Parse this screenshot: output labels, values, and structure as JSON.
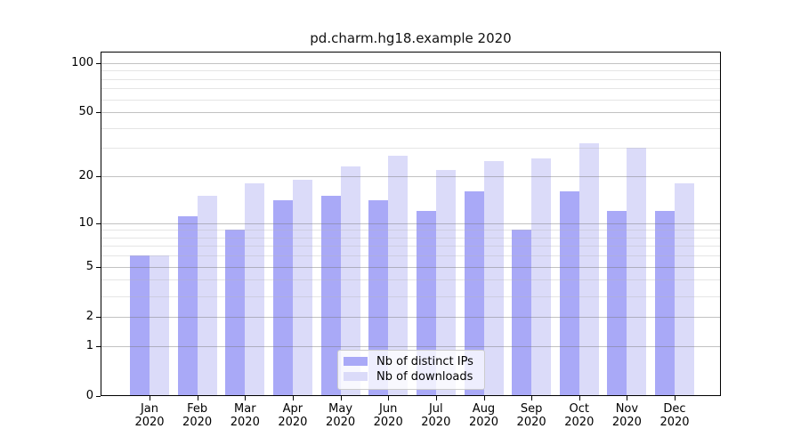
{
  "title": "pd.charm.hg18.example 2020",
  "chart_data": {
    "type": "bar",
    "title": "pd.charm.hg18.example 2020",
    "categories": [
      "Jan",
      "Feb",
      "Mar",
      "Apr",
      "May",
      "Jun",
      "Jul",
      "Aug",
      "Sep",
      "Oct",
      "Nov",
      "Dec"
    ],
    "category_year": "2020",
    "series": [
      {
        "key": "ips",
        "name": "Nb of distinct IPs",
        "color": "#a9a9f7",
        "values": [
          6,
          11,
          9,
          14,
          15,
          14,
          12,
          16,
          9,
          16,
          12,
          12
        ]
      },
      {
        "key": "downloads",
        "name": "Nb of downloads",
        "color": "#dbdbf9",
        "values": [
          6,
          15,
          18,
          19,
          23,
          27,
          22,
          25,
          26,
          32,
          30,
          18
        ]
      }
    ],
    "yscale": "log10(1+x)",
    "ylim": [
      0,
      117
    ],
    "y_ticks": [
      0,
      1,
      2,
      5,
      10,
      20,
      50,
      100
    ],
    "y_minor_gridlines": [
      3,
      4,
      6,
      7,
      8,
      9,
      30,
      40,
      60,
      70,
      80,
      90
    ],
    "grid": true,
    "legend_position": "lower center"
  },
  "palette": {
    "grid_major": "rgba(120,120,120,0.45)",
    "grid_minor": "rgba(180,180,180,0.35)",
    "spine": "#000000",
    "legend_border": "#cccccc",
    "legend_background": "rgba(255,255,255,0.8)",
    "text": "#000000"
  }
}
